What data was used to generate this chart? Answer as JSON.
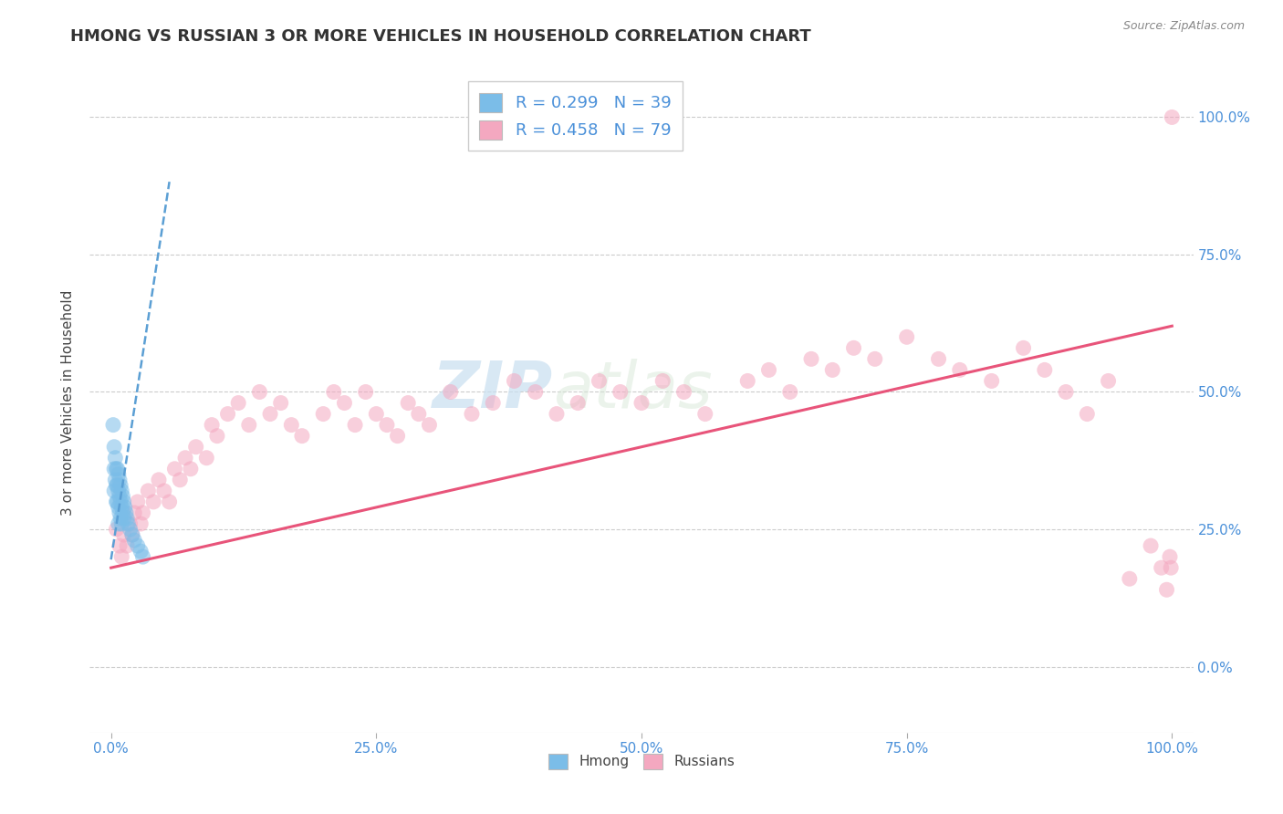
{
  "title": "HMONG VS RUSSIAN 3 OR MORE VEHICLES IN HOUSEHOLD CORRELATION CHART",
  "source": "Source: ZipAtlas.com",
  "ylabel": "3 or more Vehicles in Household",
  "xlim": [
    -0.02,
    1.02
  ],
  "ylim": [
    -0.12,
    1.08
  ],
  "xtick_vals": [
    0.0,
    0.25,
    0.5,
    0.75,
    1.0
  ],
  "xtick_labels": [
    "0.0%",
    "25.0%",
    "50.0%",
    "75.0%",
    "100.0%"
  ],
  "ytick_vals": [
    0.0,
    0.25,
    0.5,
    0.75,
    1.0
  ],
  "ytick_labels_right": [
    "0.0%",
    "25.0%",
    "50.0%",
    "75.0%",
    "100.0%"
  ],
  "watermark": "ZIPAtlas",
  "hmong_color": "#7bbde8",
  "russian_color": "#f4a8c0",
  "hmong_line_color": "#5b9fd4",
  "russian_line_color": "#e8547a",
  "legend_label_hmong": "R = 0.299   N = 39",
  "legend_label_russian": "R = 0.458   N = 79",
  "grid_color": "#cccccc",
  "background_color": "#ffffff",
  "label_color": "#4a90d9",
  "title_color": "#333333",
  "hmong_x": [
    0.002,
    0.003,
    0.003,
    0.003,
    0.004,
    0.004,
    0.005,
    0.005,
    0.005,
    0.006,
    0.006,
    0.006,
    0.007,
    0.007,
    0.007,
    0.007,
    0.008,
    0.008,
    0.008,
    0.009,
    0.009,
    0.009,
    0.01,
    0.01,
    0.01,
    0.011,
    0.011,
    0.012,
    0.012,
    0.013,
    0.014,
    0.015,
    0.016,
    0.018,
    0.02,
    0.022,
    0.025,
    0.028,
    0.03
  ],
  "hmong_y": [
    0.44,
    0.4,
    0.36,
    0.32,
    0.38,
    0.34,
    0.36,
    0.33,
    0.3,
    0.36,
    0.33,
    0.3,
    0.35,
    0.32,
    0.29,
    0.26,
    0.34,
    0.31,
    0.28,
    0.33,
    0.3,
    0.27,
    0.32,
    0.29,
    0.26,
    0.31,
    0.28,
    0.3,
    0.27,
    0.29,
    0.28,
    0.27,
    0.26,
    0.25,
    0.24,
    0.23,
    0.22,
    0.21,
    0.2
  ],
  "hmong_line_x0": 0.0,
  "hmong_line_y0": 0.195,
  "hmong_line_slope": 12.5,
  "russian_line_x0": 0.0,
  "russian_line_y0": 0.18,
  "russian_line_x1": 1.0,
  "russian_line_y1": 0.62,
  "russian_x": [
    0.005,
    0.008,
    0.01,
    0.012,
    0.015,
    0.018,
    0.02,
    0.022,
    0.025,
    0.028,
    0.03,
    0.035,
    0.04,
    0.045,
    0.05,
    0.055,
    0.06,
    0.065,
    0.07,
    0.075,
    0.08,
    0.09,
    0.095,
    0.1,
    0.11,
    0.12,
    0.13,
    0.14,
    0.15,
    0.16,
    0.17,
    0.18,
    0.2,
    0.21,
    0.22,
    0.23,
    0.24,
    0.25,
    0.26,
    0.27,
    0.28,
    0.29,
    0.3,
    0.32,
    0.34,
    0.36,
    0.38,
    0.4,
    0.42,
    0.44,
    0.46,
    0.48,
    0.5,
    0.52,
    0.54,
    0.56,
    0.6,
    0.62,
    0.64,
    0.66,
    0.68,
    0.7,
    0.72,
    0.75,
    0.78,
    0.8,
    0.83,
    0.86,
    0.88,
    0.9,
    0.92,
    0.94,
    0.96,
    0.98,
    0.99,
    0.995,
    0.998,
    0.999,
    1.0
  ],
  "russian_y": [
    0.25,
    0.22,
    0.2,
    0.24,
    0.22,
    0.26,
    0.24,
    0.28,
    0.3,
    0.26,
    0.28,
    0.32,
    0.3,
    0.34,
    0.32,
    0.3,
    0.36,
    0.34,
    0.38,
    0.36,
    0.4,
    0.38,
    0.44,
    0.42,
    0.46,
    0.48,
    0.44,
    0.5,
    0.46,
    0.48,
    0.44,
    0.42,
    0.46,
    0.5,
    0.48,
    0.44,
    0.5,
    0.46,
    0.44,
    0.42,
    0.48,
    0.46,
    0.44,
    0.5,
    0.46,
    0.48,
    0.52,
    0.5,
    0.46,
    0.48,
    0.52,
    0.5,
    0.48,
    0.52,
    0.5,
    0.46,
    0.52,
    0.54,
    0.5,
    0.56,
    0.54,
    0.58,
    0.56,
    0.6,
    0.56,
    0.54,
    0.52,
    0.58,
    0.54,
    0.5,
    0.46,
    0.52,
    0.16,
    0.22,
    0.18,
    0.14,
    0.2,
    0.18,
    1.0
  ]
}
